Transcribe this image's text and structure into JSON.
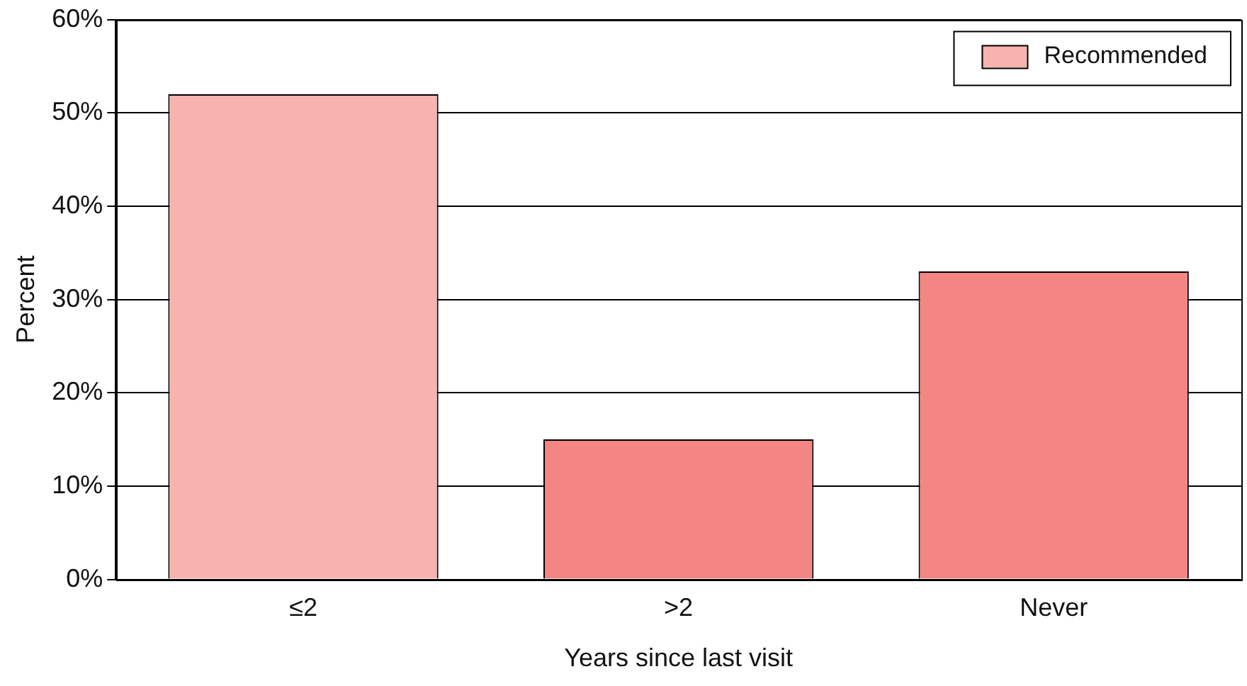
{
  "chart_data": {
    "type": "bar",
    "xlabel": "Years since last visit",
    "ylabel": "Percent",
    "categories": [
      "≤2",
      ">2",
      "Never"
    ],
    "series": [
      {
        "name": "Recommended",
        "color": "#f7b3ad",
        "colors": [
          "#f7b3ad",
          "#f38683",
          "#f38683"
        ],
        "values": [
          52,
          15,
          33
        ]
      }
    ],
    "ylim": [
      0,
      60
    ],
    "yticks": [
      {
        "value": 0,
        "label": "0%"
      },
      {
        "value": 10,
        "label": "10%"
      },
      {
        "value": 20,
        "label": "20%"
      },
      {
        "value": 30,
        "label": "30%"
      },
      {
        "value": 40,
        "label": "40%"
      },
      {
        "value": 50,
        "label": "50%"
      },
      {
        "value": 60,
        "label": "60%"
      }
    ],
    "grid": "y",
    "legend": "top right"
  }
}
